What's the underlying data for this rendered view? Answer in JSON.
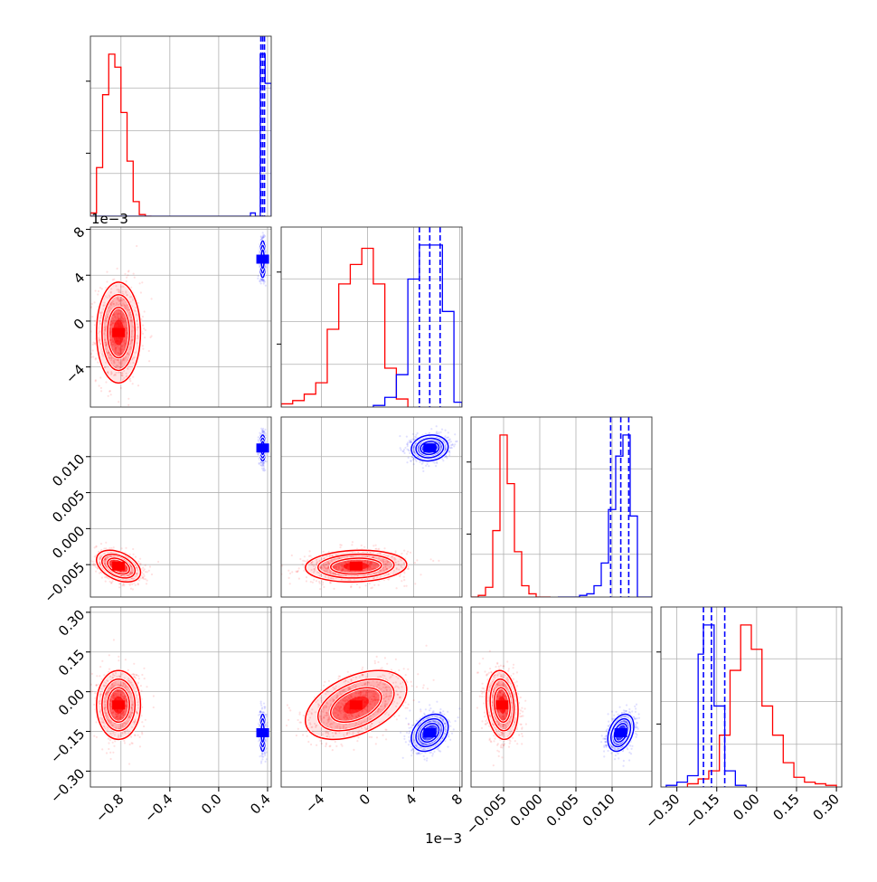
{
  "chart_data": {
    "type": "corner",
    "title": "",
    "grid": true,
    "parameters": [
      {
        "key": "p0",
        "range": [
          -1.05,
          0.43
        ],
        "ticks": [
          -0.8,
          -0.4,
          0.0,
          0.4
        ],
        "tick_labels": [
          "−0.8",
          "−0.4",
          "0.0",
          "0.4"
        ],
        "offset_label": ""
      },
      {
        "key": "p1",
        "range": [
          -0.0075,
          0.0082
        ],
        "ticks": [
          -0.004,
          0.0,
          0.004,
          0.008
        ],
        "tick_labels": [
          "−4",
          "0",
          "4",
          "8"
        ],
        "offset_label": "1e−3"
      },
      {
        "key": "p2",
        "range": [
          -0.0095,
          0.0155
        ],
        "ticks": [
          -0.005,
          0.0,
          0.005,
          0.01
        ],
        "tick_labels": [
          "−0.005",
          "0.000",
          "0.005",
          "0.010"
        ],
        "offset_label": ""
      },
      {
        "key": "p3",
        "range": [
          -0.36,
          0.32
        ],
        "ticks": [
          -0.3,
          -0.15,
          0.0,
          0.15,
          0.3
        ],
        "tick_labels": [
          "−0.30",
          "−0.15",
          "0.00",
          "0.15",
          "0.30"
        ],
        "offset_label": ""
      }
    ],
    "series": [
      {
        "color": "#ff0000",
        "means": [
          -0.82,
          -0.001,
          -0.0052,
          -0.05
        ],
        "sigmas": [
          0.09,
          0.0022,
          0.0011,
          0.065
        ],
        "correlations": {
          "1-0": 0.0,
          "2-0": -0.4,
          "2-1": 0.1,
          "3-0": 0.0,
          "3-1": 0.45,
          "3-2": -0.15
        },
        "histograms": [
          {
            "edges": [
              -1.05,
              -1.0,
              -0.95,
              -0.9,
              -0.85,
              -0.8,
              -0.75,
              -0.7,
              -0.65,
              -0.6,
              -0.55
            ],
            "counts": [
              0.02,
              0.3,
              0.75,
              1.0,
              0.92,
              0.64,
              0.34,
              0.09,
              0.01,
              0.0
            ]
          },
          {
            "edges": [
              -0.0075,
              -0.0065,
              -0.0055,
              -0.0045,
              -0.0035,
              -0.0025,
              -0.0015,
              -0.0005,
              0.0005,
              0.0015,
              0.0025,
              0.0035
            ],
            "counts": [
              0.02,
              0.04,
              0.08,
              0.15,
              0.48,
              0.76,
              0.88,
              0.98,
              0.76,
              0.24,
              0.05
            ]
          },
          {
            "edges": [
              -0.0095,
              -0.0085,
              -0.0075,
              -0.0065,
              -0.0055,
              -0.0045,
              -0.0035,
              -0.0025,
              -0.0015,
              -0.0005,
              0.0005,
              0.0015
            ],
            "counts": [
              0.0,
              0.01,
              0.06,
              0.41,
              1.0,
              0.7,
              0.28,
              0.07,
              0.02,
              0.0,
              0.0
            ]
          },
          {
            "edges": [
              -0.26,
              -0.22,
              -0.18,
              -0.14,
              -0.1,
              -0.06,
              -0.02,
              0.02,
              0.06,
              0.1,
              0.14,
              0.18,
              0.22,
              0.26,
              0.3
            ],
            "counts": [
              0.02,
              0.05,
              0.1,
              0.32,
              0.72,
              1.0,
              0.85,
              0.5,
              0.32,
              0.15,
              0.06,
              0.03,
              0.02,
              0.01
            ]
          }
        ]
      },
      {
        "color": "#0000ff",
        "means": [
          0.36,
          0.0054,
          0.0112,
          -0.155
        ],
        "sigmas": [
          0.012,
          0.0008,
          0.0009,
          0.035
        ],
        "correlations": {
          "1-0": 0.0,
          "2-0": 0.0,
          "2-1": 0.1,
          "3-0": 0.0,
          "3-1": 0.3,
          "3-2": 0.35
        },
        "quantiles": [
          [
            0.345,
            0.36,
            0.375
          ],
          [
            0.0045,
            0.0054,
            0.0063
          ],
          [
            0.0098,
            0.0112,
            0.0123
          ],
          [
            -0.2,
            -0.17,
            -0.12
          ]
        ],
        "histograms": [
          {
            "edges": [
              -1.05,
              0.26,
              0.3,
              0.34,
              0.38,
              0.43
            ],
            "counts": [
              0.0,
              0.02,
              0.0,
              1.0,
              0.82
            ]
          },
          {
            "edges": [
              0.0005,
              0.0015,
              0.0025,
              0.0035,
              0.0045,
              0.0055,
              0.0065,
              0.0075,
              0.0082
            ],
            "counts": [
              0.01,
              0.06,
              0.2,
              0.79,
              1.0,
              1.0,
              0.59,
              0.03
            ]
          },
          {
            "edges": [
              0.0025,
              0.0035,
              0.0045,
              0.0055,
              0.0065,
              0.0075,
              0.0085,
              0.0095,
              0.0105,
              0.0115,
              0.0125,
              0.0135,
              0.0145,
              0.0155
            ],
            "counts": [
              0.0,
              0.0,
              0.0,
              0.01,
              0.02,
              0.07,
              0.21,
              0.54,
              0.87,
              1.0,
              0.5,
              0.0,
              0.0
            ]
          },
          {
            "edges": [
              -0.34,
              -0.3,
              -0.26,
              -0.22,
              -0.2,
              -0.16,
              -0.12,
              -0.08,
              -0.04
            ],
            "counts": [
              0.01,
              0.03,
              0.07,
              0.82,
              1.0,
              0.5,
              0.1,
              0.01
            ]
          }
        ]
      }
    ]
  }
}
